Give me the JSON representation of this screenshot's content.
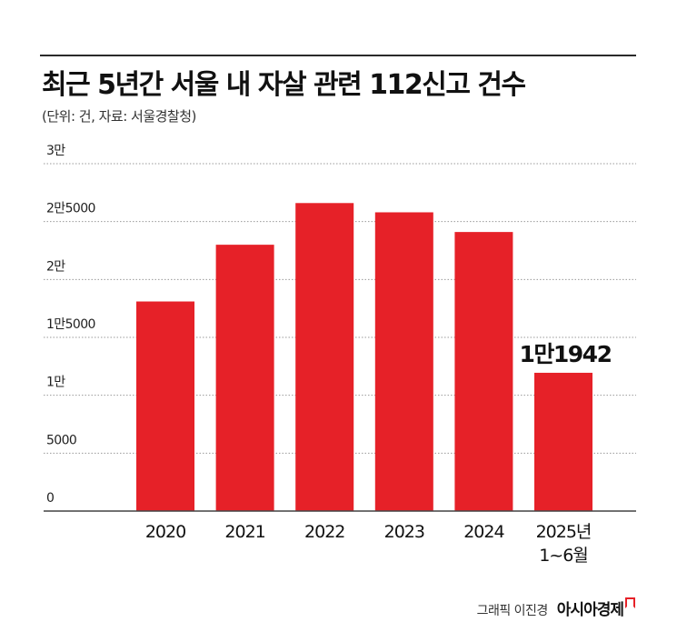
{
  "header": {
    "title": "최근 5년간 서울 내 자살 관련 112신고 건수",
    "subtitle": "(단위: 건, 자료: 서울경찰청)"
  },
  "footer": {
    "author": "그래픽 이진경",
    "brand": "아시아경제"
  },
  "colors": {
    "bar": "#e62128",
    "grid": "#9a9a9a",
    "axis": "#444444"
  },
  "chart_data": {
    "type": "bar",
    "categories": [
      "2020",
      "2021",
      "2022",
      "2023",
      "2024",
      "2025년\n1~6월"
    ],
    "values": [
      18100,
      23000,
      26600,
      25800,
      24100,
      11942
    ],
    "ylim": [
      0,
      30000
    ],
    "yticks": [
      0,
      5000,
      10000,
      15000,
      20000,
      25000,
      30000
    ],
    "ytick_labels": [
      "0",
      "5000",
      "1만",
      "1만5000",
      "2만",
      "2만5000",
      "3만"
    ],
    "data_labels": [
      null,
      null,
      null,
      null,
      null,
      "1만1942"
    ],
    "grid": true,
    "legend": "none"
  }
}
